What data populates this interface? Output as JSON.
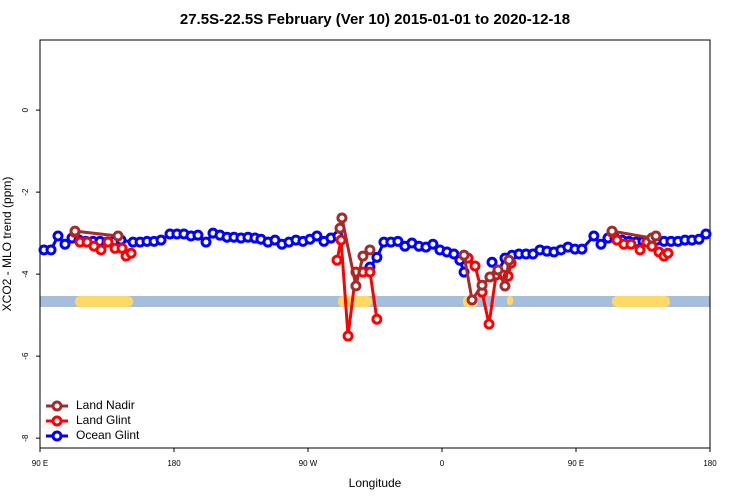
{
  "chart_data": {
    "type": "line",
    "title": "27.5S-22.5S February (Ver 10)   2015-01-01 to 2020-12-18",
    "xlabel": "Longitude",
    "ylabel": "XCO2 - MLO trend (ppm)",
    "xlim": [
      90,
      540
    ],
    "xticks": [
      {
        "value": 90,
        "label": "90 E"
      },
      {
        "value": 180,
        "label": "180"
      },
      {
        "value": 270,
        "label": "90 W"
      },
      {
        "value": 360,
        "label": "0"
      },
      {
        "value": 450,
        "label": "90 E"
      },
      {
        "value": 540,
        "label": "180"
      }
    ],
    "ylim": [
      -8.24,
      1.71
    ],
    "yticks": [
      0,
      -2,
      -4,
      -6,
      -8
    ],
    "legend": "bottom-left",
    "series": [
      {
        "name": "Land Nadir",
        "color": "#a52a2a",
        "x": [
          113.5,
          142.4,
          null,
          291.5,
          292.8,
          302.2,
          306.9,
          311.6,
          null,
          374.8,
          380.2,
          386.9,
          392.2,
          397.6,
          402.3,
          405,
          null,
          474.2,
          501,
          503.7
        ],
        "values": [
          -2.95,
          -3.07,
          null,
          -2.88,
          -2.63,
          -4.29,
          -3.56,
          -3.41,
          null,
          -3.54,
          -4.63,
          -4.27,
          -4.07,
          -3.9,
          -4.29,
          -3.66,
          null,
          -2.95,
          -3.12,
          -3.07
        ]
      },
      {
        "name": "Land Glint",
        "color": "#ff0000",
        "x": [
          113.5,
          116.9,
          121.6,
          126.3,
          131,
          135.7,
          140.4,
          145.1,
          147.8,
          151.2,
          null,
          289.5,
          292.2,
          296.9,
          302.2,
          306.9,
          311.6,
          316.3,
          null,
          374.8,
          377.5,
          382.2,
          386.9,
          391.6,
          396.3,
          401,
          404.4,
          406.4,
          null,
          474.2,
          477.5,
          482.2,
          486.9,
          493,
          497.6,
          501,
          505.7,
          509.1,
          511.8
        ],
        "values": [
          -2.98,
          -3.22,
          -3.22,
          -3.32,
          -3.41,
          -3.22,
          -3.37,
          -3.37,
          -3.56,
          -3.49,
          null,
          -3.66,
          -3.17,
          -5.51,
          -3.95,
          -3.95,
          -3.95,
          -5.1,
          null,
          -3.54,
          -3.61,
          -3.8,
          -4.44,
          -5.22,
          -4.02,
          -4.02,
          -4.05,
          -3.73,
          null,
          -2.98,
          -3.17,
          -3.27,
          -3.27,
          -3.41,
          -3.22,
          -3.32,
          -3.46,
          -3.56,
          -3.49
        ]
      },
      {
        "name": "Ocean Glint",
        "color": "#0000ff",
        "x": [
          92.7,
          97.4,
          102.1,
          106.8,
          111.5,
          116.2,
          120.9,
          125.6,
          130.3,
          135,
          139.7,
          144.4,
          152.5,
          157.2,
          161.9,
          166.6,
          171.3,
          177.3,
          182,
          186.7,
          191.4,
          196.1,
          201.5,
          206.2,
          210.9,
          215.6,
          220.3,
          225,
          229.7,
          234.4,
          238.4,
          243.1,
          247.8,
          252.5,
          257.2,
          261.9,
          266.6,
          271.3,
          276,
          280.7,
          285.4,
          290.1,
          null,
          311.6,
          316.3,
          321,
          325.7,
          330.4,
          335.1,
          339.8,
          344.5,
          349.2,
          353.9,
          358.6,
          363.3,
          368,
          372,
          374.8,
          null,
          393.6,
          397.6,
          402.3,
          407,
          411.7,
          416.4,
          421.1,
          425.8,
          430.5,
          435.2,
          439.9,
          444.6,
          449.3,
          454,
          462,
          466.8,
          471.5,
          476.2,
          480.9,
          485.6,
          490.3,
          495,
          499.7,
          504.4,
          509.1,
          513.8,
          518.5,
          523.2,
          527.9,
          532.6,
          537.3
        ],
        "values": [
          -3.41,
          -3.41,
          -3.07,
          -3.27,
          -3.12,
          -3.17,
          -3.2,
          -3.2,
          -3.2,
          -3.22,
          -3.2,
          -3.17,
          -3.22,
          -3.22,
          -3.2,
          -3.2,
          -3.17,
          -3.02,
          -3.02,
          -3.02,
          -3.07,
          -3.05,
          -3.22,
          -3,
          -3.05,
          -3.1,
          -3.1,
          -3.12,
          -3.1,
          -3.12,
          -3.15,
          -3.22,
          -3.17,
          -3.27,
          -3.22,
          -3.17,
          -3.2,
          -3.15,
          -3.07,
          -3.2,
          -3.12,
          -3.07,
          null,
          -3.83,
          -3.59,
          -3.22,
          -3.22,
          -3.2,
          -3.32,
          -3.24,
          -3.32,
          -3.34,
          -3.27,
          -3.41,
          -3.46,
          -3.51,
          -3.66,
          -3.95,
          null,
          -3.71,
          -3.95,
          -3.61,
          -3.54,
          -3.51,
          -3.51,
          -3.51,
          -3.41,
          -3.44,
          -3.46,
          -3.41,
          -3.34,
          -3.39,
          -3.39,
          -3.07,
          -3.27,
          -3.12,
          -3.12,
          -3.17,
          -3.2,
          -3.22,
          -3.2,
          -3.24,
          -3.17,
          -3.2,
          -3.2,
          -3.2,
          -3.17,
          -3.17,
          -3.15,
          -3.02
        ]
      }
    ]
  }
}
